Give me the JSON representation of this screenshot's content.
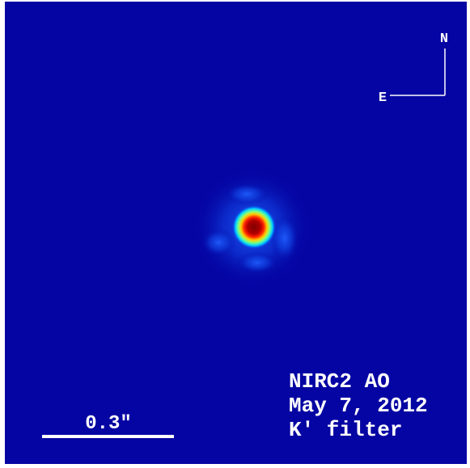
{
  "compass": {
    "north": "N",
    "east": "E"
  },
  "scale_bar": {
    "label": "0.3\""
  },
  "annotation": {
    "lines": [
      "NIRC2 AO",
      "May 7, 2012",
      "K′ filter"
    ]
  }
}
